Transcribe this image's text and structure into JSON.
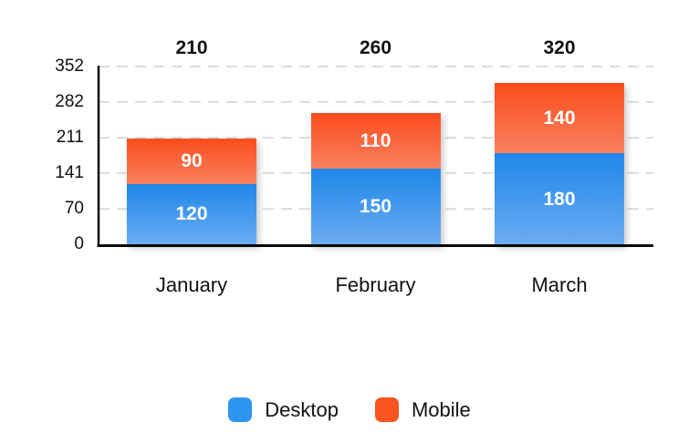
{
  "chart_data": {
    "type": "bar",
    "stacked": true,
    "categories": [
      "January",
      "February",
      "March"
    ],
    "series": [
      {
        "name": "Desktop",
        "values": [
          120,
          150,
          180
        ],
        "color": "#2D96F2",
        "gradient_top": "#1E87E9",
        "gradient_bottom": "#6CACF2"
      },
      {
        "name": "Mobile",
        "values": [
          90,
          110,
          140
        ],
        "color": "#FA551E",
        "gradient_top": "#FA4C1C",
        "gradient_bottom": "#F9815F"
      }
    ],
    "totals": [
      210,
      260,
      320
    ],
    "y_ticks": [
      0,
      70,
      141,
      211,
      282,
      352
    ],
    "ylim": [
      0,
      352
    ],
    "grid": "horizontal-dashed",
    "grid_color": "#DCDCDC",
    "axis_color": "#0A0A0A",
    "value_label_color": "#FFFFFF",
    "legend": {
      "position": "bottom",
      "items": [
        {
          "label": "Desktop",
          "color": "#2D96F2"
        },
        {
          "label": "Mobile",
          "color": "#FA551E"
        }
      ]
    }
  }
}
